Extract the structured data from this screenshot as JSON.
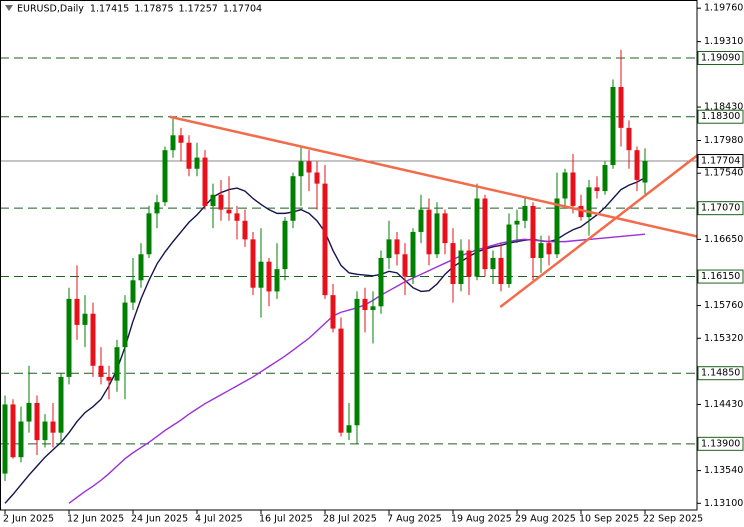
{
  "chart_data": {
    "type": "candlestick",
    "title": "EURUSD,Daily",
    "ohlc": [
      1.17415,
      1.17875,
      1.17257,
      1.17704
    ],
    "categories": [
      "2 Jun 2025",
      null,
      null,
      null,
      null,
      null,
      null,
      null,
      "12 Jun 2025",
      null,
      null,
      null,
      null,
      null,
      null,
      null,
      "24 Jun 2025",
      null,
      null,
      null,
      null,
      null,
      null,
      null,
      "4 Jul 2025",
      null,
      null,
      null,
      null,
      null,
      null,
      null,
      "16 Jul 2025",
      null,
      null,
      null,
      null,
      null,
      null,
      null,
      "28 Jul 2025",
      null,
      null,
      null,
      null,
      null,
      null,
      null,
      "7 Aug 2025",
      null,
      null,
      null,
      null,
      null,
      null,
      null,
      "19 Aug 2025",
      null,
      null,
      null,
      null,
      null,
      null,
      null,
      "29 Aug 2025",
      null,
      null,
      null,
      null,
      null,
      null,
      null,
      "10 Sep 2025",
      null,
      null,
      null,
      null,
      null,
      null,
      null,
      "22 Sep 2025"
    ],
    "open": [
      1.135,
      1.1443,
      1.1372,
      1.142,
      1.1445,
      1.1395,
      1.142,
      1.1405,
      1.148,
      1.1585,
      1.155,
      1.1565,
      1.1495,
      1.148,
      1.1475,
      1.152,
      1.158,
      1.161,
      1.1645,
      1.17,
      1.1715,
      1.1785,
      1.1805,
      1.1795,
      1.176,
      1.1775,
      1.171,
      1.1725,
      1.1705,
      1.17,
      1.169,
      1.1665,
      1.16,
      1.1635,
      1.1595,
      1.1625,
      1.169,
      1.175,
      1.177,
      1.1755,
      1.174,
      1.159,
      1.1545,
      1.1405,
      1.1415,
      1.1585,
      1.157,
      1.1575,
      1.164,
      1.1665,
      1.1645,
      1.1615,
      1.1675,
      1.1705,
      1.1645,
      1.17,
      1.166,
      1.1605,
      1.165,
      1.1615,
      1.172,
      1.1625,
      1.164,
      1.1605,
      1.1685,
      1.169,
      1.171,
      1.164,
      1.166,
      1.1645,
      1.172,
      1.1755,
      1.171,
      1.1695,
      1.1735,
      1.173,
      1.1765,
      1.187,
      1.1815,
      1.1785,
      1.17415
    ],
    "high": [
      1.1455,
      1.145,
      1.144,
      1.1495,
      1.1455,
      1.143,
      1.1445,
      1.1485,
      1.16,
      1.163,
      1.159,
      1.158,
      1.152,
      1.1495,
      1.153,
      1.159,
      1.164,
      1.166,
      1.171,
      1.1725,
      1.179,
      1.183,
      1.1815,
      1.1805,
      1.1795,
      1.1785,
      1.174,
      1.1745,
      1.175,
      1.171,
      1.1705,
      1.1675,
      1.168,
      1.164,
      1.166,
      1.1695,
      1.1755,
      1.179,
      1.1785,
      1.177,
      1.1765,
      1.1605,
      1.156,
      1.1445,
      1.1595,
      1.16,
      1.1595,
      1.165,
      1.169,
      1.1675,
      1.166,
      1.168,
      1.1725,
      1.172,
      1.1715,
      1.1705,
      1.168,
      1.1665,
      1.1665,
      1.174,
      1.1725,
      1.165,
      1.166,
      1.17,
      1.1705,
      1.172,
      1.1715,
      1.167,
      1.167,
      1.1755,
      1.176,
      1.178,
      1.1725,
      1.1745,
      1.175,
      1.177,
      1.188,
      1.192,
      1.1825,
      1.179,
      1.17875
    ],
    "low": [
      1.134,
      1.137,
      1.1365,
      1.1405,
      1.1375,
      1.1385,
      1.1385,
      1.139,
      1.147,
      1.153,
      1.152,
      1.148,
      1.147,
      1.145,
      1.146,
      1.145,
      1.157,
      1.16,
      1.164,
      1.168,
      1.171,
      1.1775,
      1.177,
      1.175,
      1.175,
      1.1705,
      1.168,
      1.169,
      1.169,
      1.1665,
      1.1655,
      1.159,
      1.156,
      1.1575,
      1.1585,
      1.161,
      1.168,
      1.171,
      1.173,
      1.1705,
      1.1585,
      1.154,
      1.14,
      1.1395,
      1.139,
      1.154,
      1.1525,
      1.1565,
      1.1625,
      1.163,
      1.159,
      1.1605,
      1.166,
      1.163,
      1.164,
      1.1645,
      1.158,
      1.1595,
      1.159,
      1.161,
      1.1615,
      1.1605,
      1.1595,
      1.16,
      1.166,
      1.168,
      1.161,
      1.162,
      1.163,
      1.164,
      1.171,
      1.17,
      1.169,
      1.167,
      1.172,
      1.1725,
      1.176,
      1.179,
      1.176,
      1.173,
      1.17257
    ],
    "close": [
      1.1443,
      1.1372,
      1.142,
      1.1445,
      1.1395,
      1.142,
      1.1405,
      1.148,
      1.1585,
      1.155,
      1.1565,
      1.1495,
      1.148,
      1.1475,
      1.152,
      1.158,
      1.161,
      1.1645,
      1.17,
      1.1715,
      1.1785,
      1.1805,
      1.1795,
      1.176,
      1.1775,
      1.171,
      1.1725,
      1.1705,
      1.17,
      1.169,
      1.1665,
      1.16,
      1.1635,
      1.1595,
      1.1625,
      1.169,
      1.175,
      1.177,
      1.1755,
      1.174,
      1.159,
      1.1545,
      1.1405,
      1.1415,
      1.1585,
      1.157,
      1.1575,
      1.164,
      1.1665,
      1.1645,
      1.1615,
      1.1675,
      1.1705,
      1.1645,
      1.17,
      1.166,
      1.1605,
      1.165,
      1.1615,
      1.172,
      1.1625,
      1.164,
      1.1605,
      1.1685,
      1.169,
      1.171,
      1.164,
      1.166,
      1.1645,
      1.172,
      1.1755,
      1.171,
      1.1695,
      1.1735,
      1.173,
      1.1765,
      1.187,
      1.1815,
      1.1785,
      1.1745,
      1.17704
    ],
    "up_color": "#008000",
    "down_color": "#e8101a",
    "indicators": [
      {
        "color": "#141450",
        "values": [
          1.131,
          1.1322,
          1.1335,
          1.1348,
          1.136,
          1.1372,
          1.1382,
          1.1392,
          1.1405,
          1.142,
          1.1432,
          1.144,
          1.145,
          1.1468,
          1.149,
          1.152,
          1.1555,
          1.1585,
          1.161,
          1.1632,
          1.1648,
          1.1662,
          1.1675,
          1.1688,
          1.1698,
          1.171,
          1.1722,
          1.1728,
          1.1732,
          1.1734,
          1.173,
          1.172,
          1.1712,
          1.1705,
          1.17,
          1.17,
          1.1702,
          1.1705,
          1.17,
          1.169,
          1.1675,
          1.165,
          1.163,
          1.162,
          1.1618,
          1.1617,
          1.1616,
          1.1618,
          1.1622,
          1.162,
          1.161,
          1.16,
          1.1595,
          1.1596,
          1.1605,
          1.1618,
          1.1628,
          1.1635,
          1.1642,
          1.1648,
          1.1652,
          1.1655,
          1.1657,
          1.166,
          1.1662,
          1.1664,
          1.1665,
          1.1663,
          1.1662,
          1.1665,
          1.1672,
          1.1678,
          1.1682,
          1.169,
          1.1698,
          1.1708,
          1.172,
          1.1732,
          1.1738,
          1.1742,
          1.1748
        ]
      },
      {
        "color": "#9a30d8",
        "values": [
          null,
          null,
          null,
          null,
          null,
          null,
          null,
          null,
          1.131,
          1.1318,
          1.1326,
          1.1333,
          1.1341,
          1.135,
          1.136,
          1.137,
          1.1378,
          1.1385,
          1.1392,
          1.14,
          1.1408,
          1.1415,
          1.1422,
          1.143,
          1.1437,
          1.1444,
          1.145,
          1.1456,
          1.1462,
          1.1468,
          1.1474,
          1.148,
          1.1487,
          1.1494,
          1.1501,
          1.1508,
          1.1516,
          1.1524,
          1.1532,
          1.1542,
          1.1552,
          1.1562,
          1.1567,
          1.157,
          1.1573,
          1.1577,
          1.1583,
          1.159,
          1.1596,
          1.1602,
          1.1608,
          1.1613,
          1.1618,
          1.1623,
          1.1628,
          1.1633,
          1.1638,
          1.1643,
          1.1647,
          1.1651,
          1.1654,
          1.1657,
          1.166,
          1.1662,
          1.1664,
          1.1665,
          1.1664,
          1.1663,
          1.1662,
          1.1662,
          1.1662,
          1.1663,
          1.1664,
          1.1665,
          1.1666,
          1.1667,
          1.1668,
          1.1669,
          1.167,
          1.1671,
          1.1672
        ]
      }
    ],
    "trendlines": [
      {
        "color": "#f26b4a",
        "start": {
          "x": 20.6,
          "y": 1.183
        },
        "end": {
          "x": 86.9,
          "y": 1.1668
        }
      },
      {
        "color": "#f26b4a",
        "start": {
          "x": 61.9,
          "y": 1.1574
        },
        "end": {
          "x": 86.9,
          "y": 1.1781
        }
      }
    ],
    "levels": [
      {
        "value": 1.1909,
        "label": "1.19090"
      },
      {
        "value": 1.183,
        "label": "1.18300"
      },
      {
        "value": 1.1707,
        "label": "1.17070"
      },
      {
        "value": 1.1615,
        "label": "1.16150"
      },
      {
        "value": 1.1485,
        "label": "1.14850"
      },
      {
        "value": 1.139,
        "label": "1.13900"
      }
    ],
    "level_color": "#1f5f1f",
    "last_price": 1.17704,
    "ylim": [
      1.1301,
      1.1987
    ],
    "yticks": [
      {
        "value": 1.1976,
        "label": "1.19760"
      },
      {
        "value": 1.1931,
        "label": "1.19310"
      },
      {
        "value": 1.1843,
        "label": "1.18430"
      },
      {
        "value": 1.1798,
        "label": "1.17980"
      },
      {
        "value": 1.1754,
        "label": "1.17540"
      },
      {
        "value": 1.1665,
        "label": "1.16650"
      },
      {
        "value": 1.1576,
        "label": "1.15760"
      },
      {
        "value": 1.1532,
        "label": "1.15320"
      },
      {
        "value": 1.1443,
        "label": "1.14430"
      },
      {
        "value": 1.1354,
        "label": "1.13540"
      },
      {
        "value": 1.131,
        "label": "1.13100"
      }
    ]
  }
}
